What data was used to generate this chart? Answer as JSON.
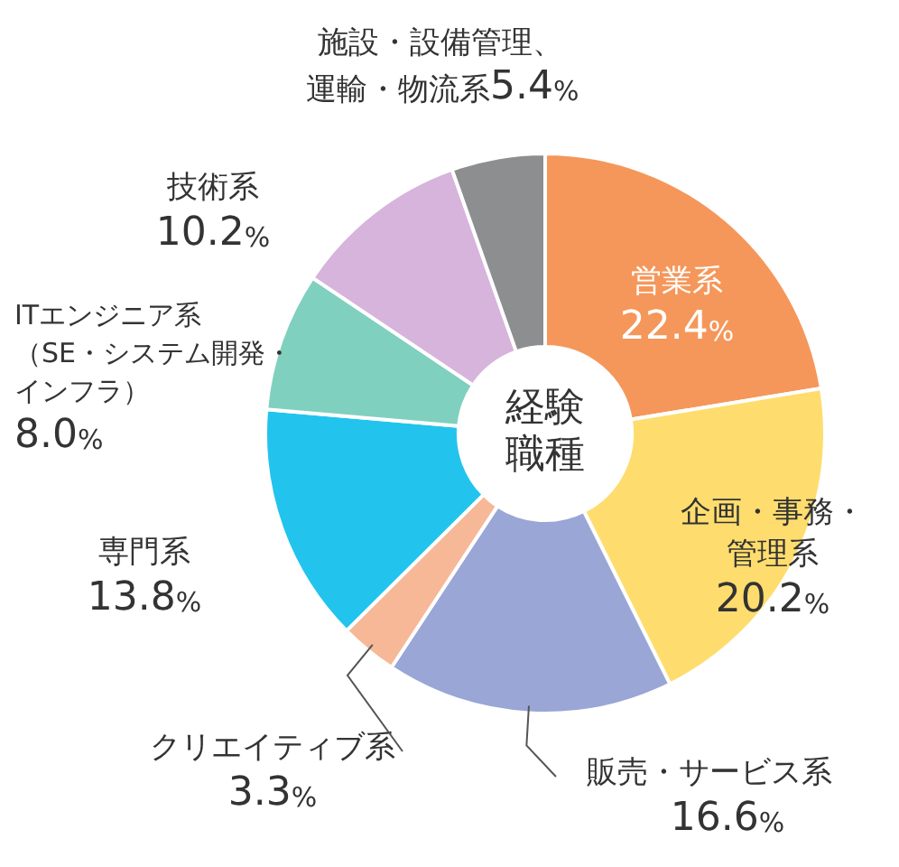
{
  "chart_data": {
    "type": "donut",
    "title": "経験職種",
    "categories": [
      "営業系",
      "企画・事務・管理系",
      "販売・サービス系",
      "クリエイティブ系",
      "専門系",
      "ITエンジニア系（SE・システム開発・インフラ）",
      "技術系",
      "施設・設備管理、運輸・物流系"
    ],
    "values": [
      22.4,
      20.2,
      16.6,
      3.3,
      13.8,
      8.0,
      10.2,
      5.4
    ],
    "value_labels": [
      "22.4%",
      "20.2%",
      "16.6%",
      "3.3%",
      "13.8%",
      "8.0%",
      "10.2%",
      "5.4%"
    ],
    "colors": [
      "#f5975a",
      "#fedd6e",
      "#99a6d6",
      "#f7b898",
      "#22c4ee",
      "#80d0bf",
      "#d7b4dc",
      "#8d8e90"
    ],
    "legend": false
  }
}
